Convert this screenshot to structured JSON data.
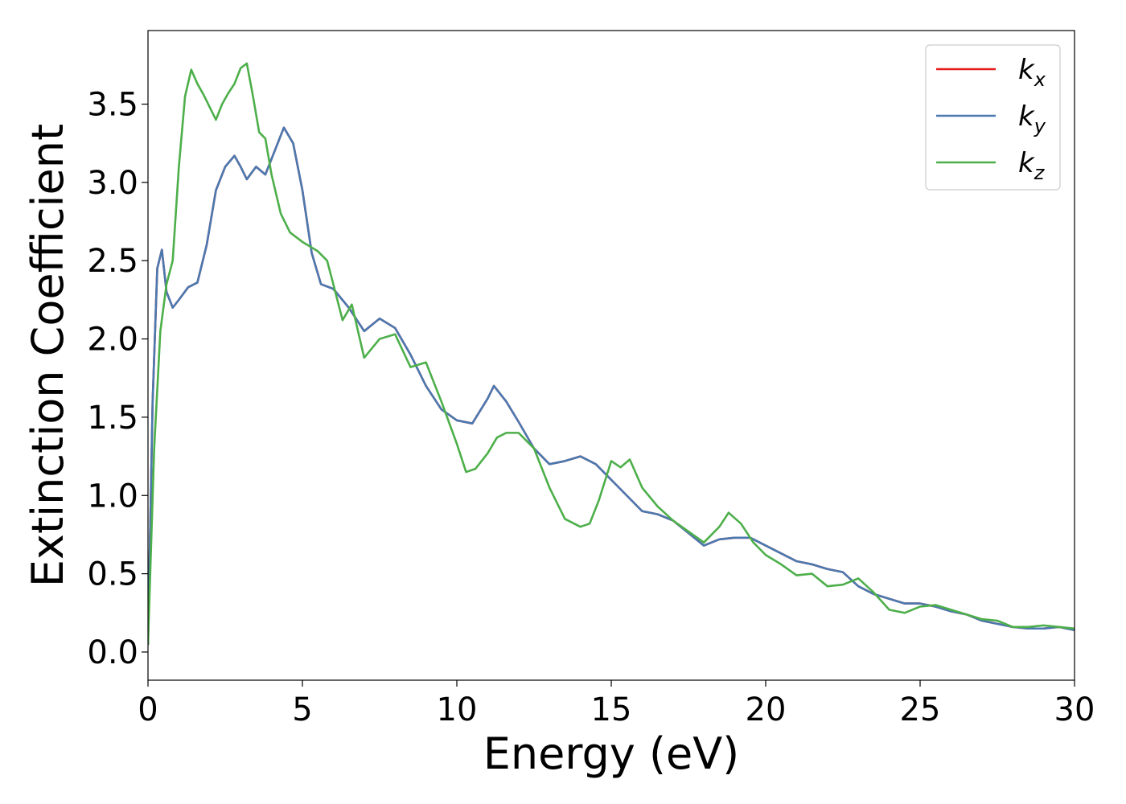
{
  "chart_data": {
    "type": "line",
    "xlabel": "Energy (eV)",
    "ylabel": "Extinction Coefficient",
    "xlim": [
      0,
      30
    ],
    "ylim": [
      -0.18,
      3.97
    ],
    "x_ticks": [
      "0",
      "5",
      "10",
      "15",
      "20",
      "25",
      "30"
    ],
    "y_ticks": [
      "0.0",
      "0.5",
      "1.0",
      "1.5",
      "2.0",
      "2.5",
      "3.0",
      "3.5"
    ],
    "grid": false,
    "legend_position": "top-right",
    "series": [
      {
        "name": "k_x",
        "legend_base": "k",
        "legend_sub": "x",
        "color": "#e41a1c",
        "x": [
          0,
          0.15,
          0.3,
          0.45,
          0.6,
          0.8,
          1.0,
          1.3,
          1.6,
          1.9,
          2.2,
          2.5,
          2.8,
          3.0,
          3.2,
          3.5,
          3.8,
          4.1,
          4.4,
          4.7,
          5.0,
          5.3,
          5.6,
          6.0,
          6.5,
          7.0,
          7.5,
          8.0,
          8.5,
          9.0,
          9.5,
          10.0,
          10.5,
          11.0,
          11.2,
          11.6,
          12.0,
          12.5,
          13.0,
          13.5,
          14.0,
          14.5,
          15.0,
          15.5,
          16.0,
          16.5,
          17.0,
          17.5,
          18.0,
          18.5,
          19.0,
          19.5,
          20.0,
          20.5,
          21.0,
          21.5,
          22.0,
          22.5,
          23.0,
          23.5,
          24.0,
          24.5,
          25.0,
          25.5,
          26.0,
          26.5,
          27.0,
          27.5,
          28.0,
          28.5,
          29.0,
          29.5,
          30.0
        ],
        "y": [
          0.05,
          1.6,
          2.45,
          2.57,
          2.3,
          2.2,
          2.25,
          2.33,
          2.36,
          2.6,
          2.95,
          3.1,
          3.17,
          3.1,
          3.02,
          3.1,
          3.05,
          3.2,
          3.35,
          3.25,
          2.95,
          2.55,
          2.35,
          2.32,
          2.2,
          2.05,
          2.13,
          2.07,
          1.9,
          1.7,
          1.55,
          1.48,
          1.46,
          1.62,
          1.7,
          1.6,
          1.47,
          1.3,
          1.2,
          1.22,
          1.25,
          1.2,
          1.1,
          1.0,
          0.9,
          0.88,
          0.84,
          0.76,
          0.68,
          0.72,
          0.73,
          0.73,
          0.68,
          0.63,
          0.58,
          0.56,
          0.53,
          0.51,
          0.42,
          0.37,
          0.34,
          0.31,
          0.31,
          0.29,
          0.26,
          0.24,
          0.2,
          0.18,
          0.16,
          0.15,
          0.15,
          0.16,
          0.14
        ]
      },
      {
        "name": "k_y",
        "legend_base": "k",
        "legend_sub": "y",
        "color": "#4a79b0",
        "x": [
          0,
          0.15,
          0.3,
          0.45,
          0.6,
          0.8,
          1.0,
          1.3,
          1.6,
          1.9,
          2.2,
          2.5,
          2.8,
          3.0,
          3.2,
          3.5,
          3.8,
          4.1,
          4.4,
          4.7,
          5.0,
          5.3,
          5.6,
          6.0,
          6.5,
          7.0,
          7.5,
          8.0,
          8.5,
          9.0,
          9.5,
          10.0,
          10.5,
          11.0,
          11.2,
          11.6,
          12.0,
          12.5,
          13.0,
          13.5,
          14.0,
          14.5,
          15.0,
          15.5,
          16.0,
          16.5,
          17.0,
          17.5,
          18.0,
          18.5,
          19.0,
          19.5,
          20.0,
          20.5,
          21.0,
          21.5,
          22.0,
          22.5,
          23.0,
          23.5,
          24.0,
          24.5,
          25.0,
          25.5,
          26.0,
          26.5,
          27.0,
          27.5,
          28.0,
          28.5,
          29.0,
          29.5,
          30.0
        ],
        "y": [
          0.05,
          1.6,
          2.45,
          2.57,
          2.3,
          2.2,
          2.25,
          2.33,
          2.36,
          2.6,
          2.95,
          3.1,
          3.17,
          3.1,
          3.02,
          3.1,
          3.05,
          3.2,
          3.35,
          3.25,
          2.95,
          2.55,
          2.35,
          2.32,
          2.2,
          2.05,
          2.13,
          2.07,
          1.9,
          1.7,
          1.55,
          1.48,
          1.46,
          1.62,
          1.7,
          1.6,
          1.47,
          1.3,
          1.2,
          1.22,
          1.25,
          1.2,
          1.1,
          1.0,
          0.9,
          0.88,
          0.84,
          0.76,
          0.68,
          0.72,
          0.73,
          0.73,
          0.68,
          0.63,
          0.58,
          0.56,
          0.53,
          0.51,
          0.42,
          0.37,
          0.34,
          0.31,
          0.31,
          0.29,
          0.26,
          0.24,
          0.2,
          0.18,
          0.16,
          0.15,
          0.15,
          0.16,
          0.14
        ]
      },
      {
        "name": "k_z",
        "legend_base": "k",
        "legend_sub": "z",
        "color": "#4daf4a",
        "x": [
          0,
          0.2,
          0.4,
          0.6,
          0.8,
          1.0,
          1.2,
          1.4,
          1.6,
          1.8,
          2.0,
          2.2,
          2.4,
          2.6,
          2.8,
          3.0,
          3.2,
          3.4,
          3.6,
          3.8,
          4.0,
          4.3,
          4.6,
          5.0,
          5.5,
          5.8,
          6.0,
          6.3,
          6.6,
          7.0,
          7.5,
          8.0,
          8.5,
          9.0,
          9.5,
          10.0,
          10.3,
          10.6,
          11.0,
          11.3,
          11.6,
          12.0,
          12.5,
          13.0,
          13.5,
          14.0,
          14.3,
          14.6,
          15.0,
          15.3,
          15.6,
          16.0,
          16.5,
          17.0,
          17.5,
          18.0,
          18.5,
          18.8,
          19.2,
          19.6,
          20.0,
          20.5,
          21.0,
          21.5,
          22.0,
          22.5,
          23.0,
          23.5,
          24.0,
          24.5,
          25.0,
          25.5,
          26.0,
          26.5,
          27.0,
          27.5,
          28.0,
          28.5,
          29.0,
          29.5,
          30.0
        ],
        "y": [
          0.05,
          1.3,
          2.05,
          2.35,
          2.5,
          3.1,
          3.55,
          3.72,
          3.63,
          3.56,
          3.48,
          3.4,
          3.5,
          3.57,
          3.63,
          3.73,
          3.76,
          3.55,
          3.32,
          3.28,
          3.05,
          2.8,
          2.68,
          2.62,
          2.56,
          2.5,
          2.35,
          2.12,
          2.22,
          1.88,
          2.0,
          2.03,
          1.82,
          1.85,
          1.6,
          1.33,
          1.15,
          1.17,
          1.27,
          1.37,
          1.4,
          1.4,
          1.3,
          1.05,
          0.85,
          0.8,
          0.82,
          0.97,
          1.22,
          1.18,
          1.23,
          1.05,
          0.93,
          0.84,
          0.77,
          0.7,
          0.8,
          0.89,
          0.82,
          0.7,
          0.62,
          0.56,
          0.49,
          0.5,
          0.42,
          0.43,
          0.47,
          0.38,
          0.27,
          0.25,
          0.29,
          0.3,
          0.27,
          0.24,
          0.21,
          0.2,
          0.16,
          0.16,
          0.17,
          0.16,
          0.15
        ]
      }
    ]
  }
}
